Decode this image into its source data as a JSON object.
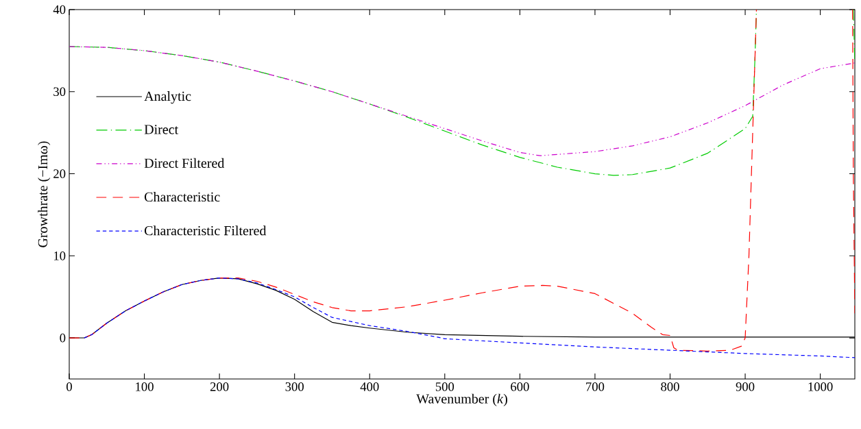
{
  "chart_data": {
    "type": "line",
    "xlabel": "Wavenumber (*k*)",
    "ylabel": "Growthrate (−Imω)",
    "xlim": [
      0,
      1046
    ],
    "ylim": [
      -5,
      40
    ],
    "xticks": [
      0,
      100,
      200,
      300,
      400,
      500,
      600,
      700,
      800,
      900,
      1000
    ],
    "yticks": [
      0,
      10,
      20,
      30,
      40
    ],
    "grid": false,
    "legend": "top left",
    "marker": "none",
    "series": [
      {
        "name": "Analytic",
        "color": "#000000",
        "line_style": "solid",
        "x": [
          0,
          20,
          30,
          50,
          75,
          100,
          125,
          150,
          175,
          200,
          225,
          250,
          275,
          300,
          325,
          350,
          375,
          400,
          450,
          500,
          600,
          700,
          800,
          900,
          1000,
          1046
        ],
        "values": [
          0,
          0,
          0.4,
          1.8,
          3.3,
          4.5,
          5.6,
          6.5,
          7.0,
          7.3,
          7.2,
          6.6,
          5.8,
          4.7,
          3.2,
          1.9,
          1.5,
          1.2,
          0.7,
          0.4,
          0.2,
          0.1,
          0.1,
          0.1,
          0.1,
          0.1
        ]
      },
      {
        "name": "Direct",
        "color": "#00cc00",
        "line_style": "dashdotted",
        "x": [
          0,
          50,
          100,
          150,
          200,
          250,
          300,
          350,
          400,
          450,
          500,
          550,
          600,
          650,
          700,
          725,
          750,
          800,
          850,
          900,
          910,
          913,
          915,
          null,
          1044,
          1046
        ],
        "values": [
          35.5,
          35.4,
          35.0,
          34.4,
          33.6,
          32.5,
          31.3,
          30.0,
          28.5,
          26.9,
          25.2,
          23.5,
          22.0,
          20.8,
          20.0,
          19.8,
          19.9,
          20.7,
          22.5,
          25.5,
          27.0,
          34.0,
          40,
          null,
          40,
          33.5
        ]
      },
      {
        "name": "Direct Filtered",
        "color": "#cc00cc",
        "line_style": "dashdotdotted",
        "x": [
          0,
          50,
          100,
          150,
          200,
          250,
          300,
          350,
          400,
          450,
          500,
          550,
          600,
          627,
          700,
          750,
          800,
          850,
          900,
          950,
          1000,
          1046
        ],
        "values": [
          35.5,
          35.4,
          35.0,
          34.4,
          33.6,
          32.5,
          31.3,
          30.0,
          28.5,
          27.0,
          25.5,
          24.0,
          22.6,
          22.2,
          22.7,
          23.4,
          24.5,
          26.2,
          28.3,
          30.8,
          32.8,
          33.5
        ]
      },
      {
        "name": "Characteristic",
        "color": "#ff0000",
        "line_style": "loosely dashed",
        "x": [
          0,
          20,
          30,
          50,
          75,
          100,
          125,
          150,
          175,
          200,
          225,
          250,
          275,
          300,
          325,
          350,
          375,
          400,
          450,
          500,
          550,
          600,
          630,
          650,
          700,
          750,
          775,
          790,
          800,
          805,
          810,
          850,
          880,
          895,
          900,
          905,
          910,
          915,
          null,
          1043,
          1044,
          1046
        ],
        "values": [
          0,
          0,
          0.4,
          1.8,
          3.3,
          4.5,
          5.6,
          6.5,
          7.0,
          7.3,
          7.3,
          6.9,
          6.2,
          5.3,
          4.4,
          3.7,
          3.3,
          3.3,
          3.8,
          4.6,
          5.5,
          6.3,
          6.4,
          6.3,
          5.4,
          3.0,
          1.3,
          0.4,
          0.3,
          -1.2,
          -1.5,
          -1.6,
          -1.5,
          -1.0,
          0,
          10,
          25,
          40,
          null,
          40,
          20,
          3
        ]
      },
      {
        "name": "Characteristic Filtered",
        "color": "#0000ff",
        "line_style": "dashed",
        "x": [
          20,
          30,
          50,
          75,
          100,
          125,
          150,
          175,
          200,
          225,
          250,
          275,
          300,
          325,
          350,
          375,
          400,
          450,
          490,
          500,
          600,
          700,
          800,
          900,
          1000,
          1046
        ],
        "values": [
          0,
          0.4,
          1.8,
          3.3,
          4.5,
          5.6,
          6.5,
          7.0,
          7.3,
          7.2,
          6.7,
          5.9,
          5.0,
          3.7,
          2.5,
          2.0,
          1.5,
          0.8,
          0.1,
          -0.1,
          -0.6,
          -1.1,
          -1.5,
          -1.9,
          -2.2,
          -2.4
        ]
      }
    ]
  }
}
